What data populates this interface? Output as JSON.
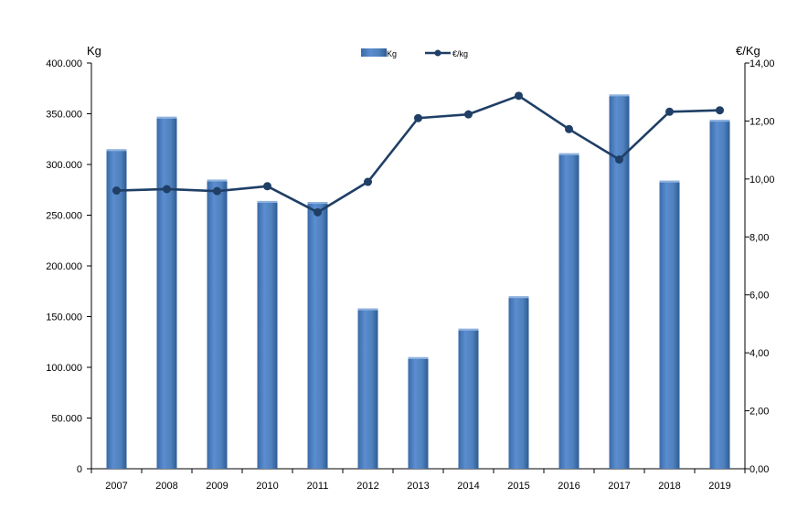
{
  "chart_data": {
    "type": "bar",
    "categories": [
      "2007",
      "2008",
      "2009",
      "2010",
      "2011",
      "2012",
      "2013",
      "2014",
      "2015",
      "2016",
      "2017",
      "2018",
      "2019"
    ],
    "series": [
      {
        "name": "Kg",
        "type": "bar",
        "axis": "left",
        "values": [
          315000,
          347000,
          285000,
          264000,
          263000,
          158000,
          110000,
          138000,
          170000,
          311000,
          369000,
          284000,
          344000
        ]
      },
      {
        "name": "€/kg",
        "type": "line",
        "axis": "right",
        "values": [
          9.6,
          9.65,
          9.58,
          9.75,
          8.85,
          9.9,
          12.1,
          12.23,
          12.87,
          11.72,
          10.67,
          12.32,
          12.37
        ]
      }
    ],
    "ylabel_left": "Kg",
    "ylabel_right": "€/Kg",
    "ylim_left": [
      0,
      400000
    ],
    "ylim_right": [
      0,
      14
    ],
    "yticks_left": [
      "0",
      "50.000",
      "100.000",
      "150.000",
      "200.000",
      "250.000",
      "300.000",
      "350.000",
      "400.000"
    ],
    "yticks_right": [
      "0,00",
      "2,00",
      "4,00",
      "6,00",
      "8,00",
      "10,00",
      "12,00",
      "14,00"
    ],
    "legend": {
      "placement": "top-center",
      "items": [
        "Kg",
        "€/kg"
      ]
    },
    "grid": false,
    "colors": {
      "bar": "#4F81BD",
      "bar_dark": "#2E5C94",
      "line": "#1F3F66",
      "axis": "#000000"
    }
  }
}
